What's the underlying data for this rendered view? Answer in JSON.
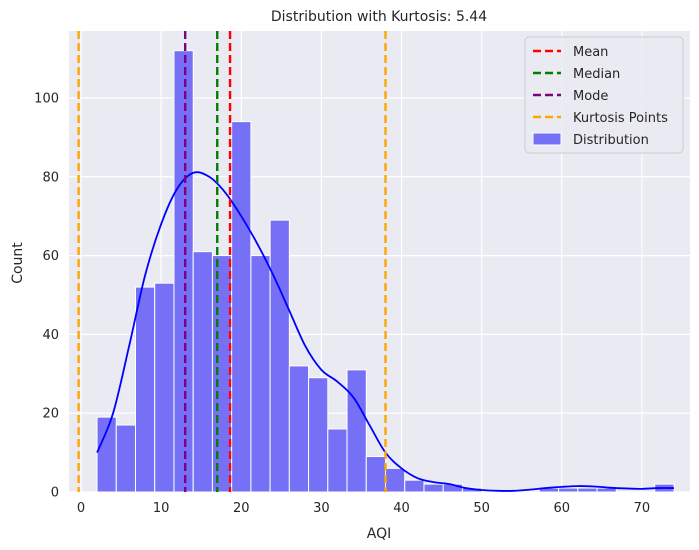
{
  "chart_data": {
    "type": "bar",
    "title": "Distribution with Kurtosis: 5.44",
    "xlabel": "AQI",
    "ylabel": "Count",
    "xlim": [
      -1.5,
      76
    ],
    "ylim": [
      0,
      117
    ],
    "x_ticks": [
      0,
      10,
      20,
      30,
      40,
      50,
      60,
      70
    ],
    "y_ticks": [
      0,
      20,
      40,
      60,
      80,
      100
    ],
    "grid": true,
    "legend_position": "top-right",
    "bin_width": 2.4,
    "series": [
      {
        "name": "Distribution",
        "type": "histogram",
        "color": "#7570f6",
        "bins": [
          {
            "x": 2.0,
            "count": 19
          },
          {
            "x": 4.4,
            "count": 17
          },
          {
            "x": 6.8,
            "count": 52
          },
          {
            "x": 9.2,
            "count": 53
          },
          {
            "x": 11.6,
            "count": 112
          },
          {
            "x": 14.0,
            "count": 61
          },
          {
            "x": 16.4,
            "count": 60
          },
          {
            "x": 18.8,
            "count": 94
          },
          {
            "x": 21.2,
            "count": 60
          },
          {
            "x": 23.6,
            "count": 69
          },
          {
            "x": 26.0,
            "count": 32
          },
          {
            "x": 28.4,
            "count": 29
          },
          {
            "x": 30.8,
            "count": 16
          },
          {
            "x": 33.2,
            "count": 31
          },
          {
            "x": 35.6,
            "count": 9
          },
          {
            "x": 38.0,
            "count": 6
          },
          {
            "x": 40.4,
            "count": 3
          },
          {
            "x": 42.8,
            "count": 2
          },
          {
            "x": 45.2,
            "count": 2
          },
          {
            "x": 47.6,
            "count": 1
          },
          {
            "x": 50.0,
            "count": 0
          },
          {
            "x": 52.4,
            "count": 0
          },
          {
            "x": 54.8,
            "count": 0
          },
          {
            "x": 57.2,
            "count": 1
          },
          {
            "x": 59.6,
            "count": 1
          },
          {
            "x": 62.0,
            "count": 1
          },
          {
            "x": 64.4,
            "count": 1
          },
          {
            "x": 66.8,
            "count": 0
          },
          {
            "x": 69.2,
            "count": 0
          },
          {
            "x": 71.6,
            "count": 2
          }
        ]
      },
      {
        "type": "kde",
        "color": "#0000ff",
        "points": [
          [
            2,
            10
          ],
          [
            4,
            20
          ],
          [
            6,
            37
          ],
          [
            8,
            55
          ],
          [
            10,
            68
          ],
          [
            12,
            77
          ],
          [
            14,
            81
          ],
          [
            16,
            80
          ],
          [
            18,
            76
          ],
          [
            20,
            70
          ],
          [
            22,
            63
          ],
          [
            24,
            55
          ],
          [
            26,
            46
          ],
          [
            28,
            37
          ],
          [
            30,
            31
          ],
          [
            32,
            28
          ],
          [
            34,
            24
          ],
          [
            36,
            17
          ],
          [
            38,
            10
          ],
          [
            40,
            6
          ],
          [
            42,
            3.5
          ],
          [
            44,
            2.5
          ],
          [
            46,
            2
          ],
          [
            48,
            1
          ],
          [
            50,
            0.5
          ],
          [
            52,
            0.3
          ],
          [
            54,
            0.3
          ],
          [
            56,
            0.6
          ],
          [
            58,
            1
          ],
          [
            60,
            1.3
          ],
          [
            62,
            1.5
          ],
          [
            64,
            1.4
          ],
          [
            66,
            1.1
          ],
          [
            68,
            0.9
          ],
          [
            70,
            0.8
          ],
          [
            72,
            1
          ],
          [
            74,
            1
          ]
        ]
      }
    ],
    "reference_lines": [
      {
        "name": "Mean",
        "x": 18.6,
        "color": "#ff0000"
      },
      {
        "name": "Median",
        "x": 17.0,
        "color": "#008000"
      },
      {
        "name": "Mode",
        "x": 13.0,
        "color": "#800080"
      },
      {
        "name": "Kurtosis Points",
        "x": [
          -0.3,
          38.0
        ],
        "color": "#ffa500"
      }
    ]
  }
}
